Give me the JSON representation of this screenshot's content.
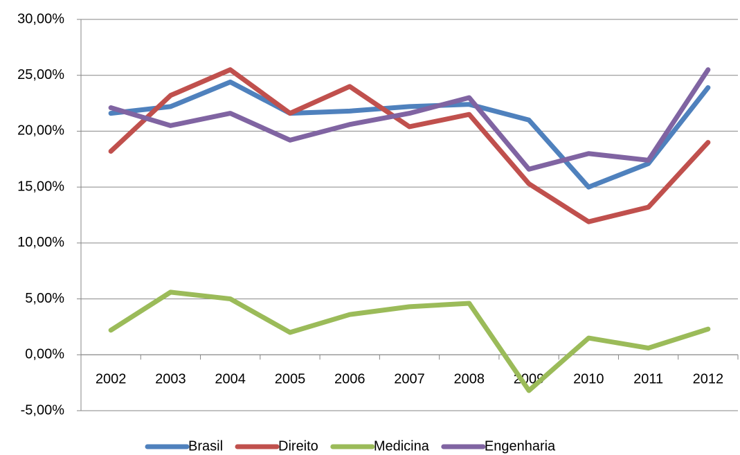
{
  "chart_data": {
    "type": "line",
    "categories": [
      "2002",
      "2003",
      "2004",
      "2005",
      "2006",
      "2007",
      "2008",
      "2009",
      "2010",
      "2011",
      "2012"
    ],
    "series": [
      {
        "name": "Brasil",
        "color": "#4f81bd",
        "values": [
          21.6,
          22.2,
          24.4,
          21.6,
          21.8,
          22.2,
          22.4,
          21.0,
          15.0,
          17.1,
          23.9
        ]
      },
      {
        "name": "Direito",
        "color": "#c0504d",
        "values": [
          18.2,
          23.2,
          25.5,
          21.6,
          24.0,
          20.4,
          21.5,
          15.3,
          11.9,
          13.2,
          19.0
        ]
      },
      {
        "name": "Medicina",
        "color": "#9bbb59",
        "values": [
          2.2,
          5.6,
          5.0,
          2.0,
          3.6,
          4.3,
          4.6,
          -3.2,
          1.5,
          0.6,
          2.3
        ]
      },
      {
        "name": "Engenharia",
        "color": "#8064a2",
        "values": [
          22.1,
          20.5,
          21.6,
          19.2,
          20.6,
          21.6,
          23.0,
          16.6,
          18.0,
          17.4,
          25.5
        ]
      }
    ],
    "ylim": [
      -5,
      30
    ],
    "yticks": [
      {
        "value": -5,
        "label": "-5,00%"
      },
      {
        "value": 0,
        "label": "0,00%"
      },
      {
        "value": 5,
        "label": "5,00%"
      },
      {
        "value": 10,
        "label": "10,00%"
      },
      {
        "value": 15,
        "label": "15,00%"
      },
      {
        "value": 20,
        "label": "20,00%"
      },
      {
        "value": 25,
        "label": "25,00%"
      },
      {
        "value": 30,
        "label": "30,00%"
      }
    ],
    "grid": true,
    "legend": "bottom"
  }
}
